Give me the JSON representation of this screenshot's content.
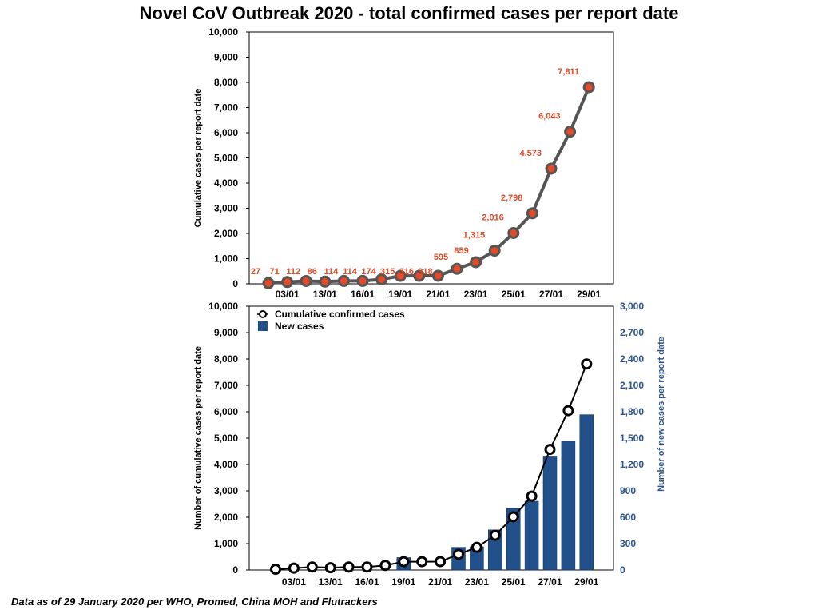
{
  "title": "Novel CoV Outbreak 2020 - total confirmed cases per report date",
  "footnote": "Data as of 29 January 2020 per WHO, Promed, China MOH and Flutrackers",
  "colors": {
    "line": "#555555",
    "marker": "#e24a29",
    "bar": "#22508b",
    "right_axis": "#2c5391"
  },
  "chart_data": [
    {
      "type": "line",
      "title": "Novel CoV Outbreak 2020 - total confirmed cases per report date",
      "xlabel": "",
      "ylabel": "Cumulative cases per report date",
      "ylim": [
        0,
        10000
      ],
      "yticks": [
        "0",
        "1,000",
        "2,000",
        "3,000",
        "4,000",
        "5,000",
        "6,000",
        "7,000",
        "8,000",
        "9,000",
        "10,000"
      ],
      "x_tick_labels": [
        "03/01",
        "13/01",
        "16/01",
        "19/01",
        "21/01",
        "23/01",
        "25/01",
        "27/01",
        "29/01"
      ],
      "values": [
        27,
        71,
        112,
        86,
        114,
        114,
        174,
        315,
        316,
        318,
        595,
        859,
        1315,
        2016,
        2798,
        4573,
        6043,
        7811
      ],
      "data_labels": [
        "27",
        "71",
        "112",
        "86",
        "114",
        "114",
        "174",
        "315",
        "316",
        "318",
        "595",
        "859",
        "1,315",
        "2,016",
        "2,798",
        "4,573",
        "6,043",
        "7,811"
      ]
    },
    {
      "type": "bar",
      "ylabel": "Number of cumulative cases per report date",
      "ylabel_right": "Number of new cases per report date",
      "ylim": [
        0,
        10000
      ],
      "ylim_right": [
        0,
        3000
      ],
      "yticks": [
        "0",
        "1,000",
        "2,000",
        "3,000",
        "4,000",
        "5,000",
        "6,000",
        "7,000",
        "8,000",
        "9,000",
        "10,000"
      ],
      "yticks_right": [
        "0",
        "300",
        "600",
        "900",
        "1,200",
        "1,500",
        "1,800",
        "2,100",
        "2,400",
        "2,700",
        "3,000"
      ],
      "x_tick_labels": [
        "03/01",
        "13/01",
        "16/01",
        "19/01",
        "21/01",
        "23/01",
        "25/01",
        "27/01",
        "29/01"
      ],
      "legend": [
        "Cumulative confirmed cases",
        "New cases"
      ],
      "series": [
        {
          "name": "Cumulative confirmed cases",
          "axis": "left",
          "values": [
            27,
            71,
            112,
            86,
            114,
            114,
            174,
            315,
            316,
            318,
            595,
            859,
            1315,
            2016,
            2798,
            4573,
            6043,
            7811
          ]
        },
        {
          "name": "New cases",
          "axis": "right",
          "values": [
            0,
            0,
            0,
            0,
            0,
            0,
            0,
            141,
            0,
            0,
            258,
            264,
            456,
            701,
            782,
            1296,
            1465,
            1767
          ]
        }
      ]
    }
  ]
}
